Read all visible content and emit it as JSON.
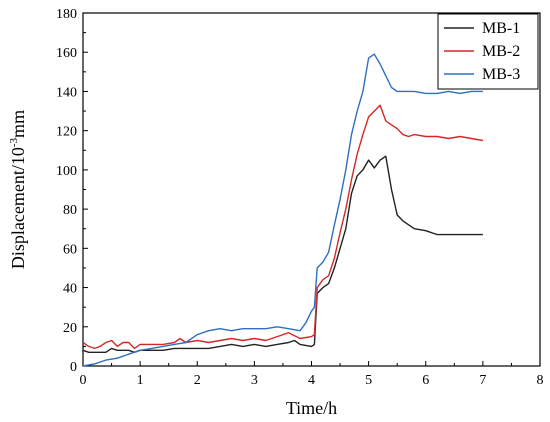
{
  "chart_data": {
    "type": "line",
    "xlabel": "Time/h",
    "ylabel": "Displacement/10",
    "ylabel_sup": "-3",
    "ylabel_unit": "mm",
    "xlim": [
      0,
      8
    ],
    "ylim": [
      0,
      180
    ],
    "x_ticks": [
      0,
      1,
      2,
      3,
      4,
      5,
      6,
      7,
      8
    ],
    "y_ticks": [
      0,
      20,
      40,
      60,
      80,
      100,
      120,
      140,
      160,
      180
    ],
    "grid": false,
    "legend_position": "top-right",
    "series": [
      {
        "name": "MB-1",
        "color": "#222222",
        "points": [
          [
            0,
            8
          ],
          [
            0.1,
            7
          ],
          [
            0.2,
            7
          ],
          [
            0.3,
            7
          ],
          [
            0.4,
            7
          ],
          [
            0.5,
            9
          ],
          [
            0.6,
            8
          ],
          [
            0.7,
            8
          ],
          [
            0.8,
            8
          ],
          [
            0.9,
            7
          ],
          [
            1,
            8
          ],
          [
            1.2,
            8
          ],
          [
            1.4,
            8
          ],
          [
            1.6,
            9
          ],
          [
            1.8,
            9
          ],
          [
            2,
            9
          ],
          [
            2.2,
            9
          ],
          [
            2.4,
            10
          ],
          [
            2.6,
            11
          ],
          [
            2.8,
            10
          ],
          [
            3,
            11
          ],
          [
            3.2,
            10
          ],
          [
            3.4,
            11
          ],
          [
            3.6,
            12
          ],
          [
            3.7,
            13
          ],
          [
            3.8,
            11
          ],
          [
            4.0,
            10
          ],
          [
            4.05,
            11
          ],
          [
            4.1,
            37
          ],
          [
            4.2,
            40
          ],
          [
            4.3,
            42
          ],
          [
            4.4,
            50
          ],
          [
            4.5,
            60
          ],
          [
            4.6,
            70
          ],
          [
            4.7,
            88
          ],
          [
            4.8,
            97
          ],
          [
            4.9,
            100
          ],
          [
            5.0,
            105
          ],
          [
            5.1,
            101
          ],
          [
            5.2,
            105
          ],
          [
            5.3,
            107
          ],
          [
            5.4,
            90
          ],
          [
            5.5,
            77
          ],
          [
            5.6,
            74
          ],
          [
            5.7,
            72
          ],
          [
            5.8,
            70
          ],
          [
            6.0,
            69
          ],
          [
            6.2,
            67
          ],
          [
            6.4,
            67
          ],
          [
            6.6,
            67
          ],
          [
            6.8,
            67
          ],
          [
            7.0,
            67
          ]
        ]
      },
      {
        "name": "MB-2",
        "color": "#d62728",
        "points": [
          [
            0,
            12
          ],
          [
            0.1,
            10
          ],
          [
            0.2,
            9
          ],
          [
            0.3,
            10
          ],
          [
            0.4,
            12
          ],
          [
            0.5,
            13
          ],
          [
            0.6,
            10
          ],
          [
            0.7,
            12
          ],
          [
            0.8,
            12
          ],
          [
            0.9,
            9
          ],
          [
            1,
            11
          ],
          [
            1.2,
            11
          ],
          [
            1.4,
            11
          ],
          [
            1.6,
            12
          ],
          [
            1.7,
            14
          ],
          [
            1.8,
            12
          ],
          [
            2,
            13
          ],
          [
            2.2,
            12
          ],
          [
            2.4,
            13
          ],
          [
            2.6,
            14
          ],
          [
            2.8,
            13
          ],
          [
            3,
            14
          ],
          [
            3.2,
            13
          ],
          [
            3.4,
            15
          ],
          [
            3.6,
            17
          ],
          [
            3.8,
            14
          ],
          [
            4.0,
            15
          ],
          [
            4.05,
            16
          ],
          [
            4.1,
            40
          ],
          [
            4.2,
            44
          ],
          [
            4.3,
            46
          ],
          [
            4.4,
            55
          ],
          [
            4.5,
            68
          ],
          [
            4.6,
            80
          ],
          [
            4.7,
            95
          ],
          [
            4.8,
            108
          ],
          [
            4.9,
            118
          ],
          [
            5.0,
            127
          ],
          [
            5.1,
            130
          ],
          [
            5.2,
            133
          ],
          [
            5.3,
            125
          ],
          [
            5.4,
            123
          ],
          [
            5.5,
            121
          ],
          [
            5.6,
            118
          ],
          [
            5.7,
            117
          ],
          [
            5.8,
            118
          ],
          [
            6.0,
            117
          ],
          [
            6.2,
            117
          ],
          [
            6.4,
            116
          ],
          [
            6.6,
            117
          ],
          [
            6.8,
            116
          ],
          [
            7.0,
            115
          ]
        ]
      },
      {
        "name": "MB-3",
        "color": "#2f6fbf",
        "points": [
          [
            0,
            0
          ],
          [
            0.2,
            1
          ],
          [
            0.4,
            3
          ],
          [
            0.6,
            4
          ],
          [
            0.8,
            6
          ],
          [
            1,
            8
          ],
          [
            1.2,
            9
          ],
          [
            1.4,
            10
          ],
          [
            1.6,
            11
          ],
          [
            1.8,
            12
          ],
          [
            2,
            16
          ],
          [
            2.2,
            18
          ],
          [
            2.4,
            19
          ],
          [
            2.6,
            18
          ],
          [
            2.8,
            19
          ],
          [
            3,
            19
          ],
          [
            3.2,
            19
          ],
          [
            3.4,
            20
          ],
          [
            3.6,
            19
          ],
          [
            3.8,
            18
          ],
          [
            3.9,
            22
          ],
          [
            4.0,
            28
          ],
          [
            4.05,
            30
          ],
          [
            4.1,
            50
          ],
          [
            4.2,
            53
          ],
          [
            4.3,
            58
          ],
          [
            4.4,
            72
          ],
          [
            4.5,
            85
          ],
          [
            4.6,
            100
          ],
          [
            4.7,
            118
          ],
          [
            4.8,
            130
          ],
          [
            4.9,
            140
          ],
          [
            5.0,
            157
          ],
          [
            5.1,
            159
          ],
          [
            5.2,
            154
          ],
          [
            5.3,
            148
          ],
          [
            5.4,
            142
          ],
          [
            5.5,
            140
          ],
          [
            5.6,
            140
          ],
          [
            5.8,
            140
          ],
          [
            6.0,
            139
          ],
          [
            6.2,
            139
          ],
          [
            6.4,
            140
          ],
          [
            6.6,
            139
          ],
          [
            6.8,
            140
          ],
          [
            7.0,
            140
          ]
        ]
      }
    ]
  }
}
